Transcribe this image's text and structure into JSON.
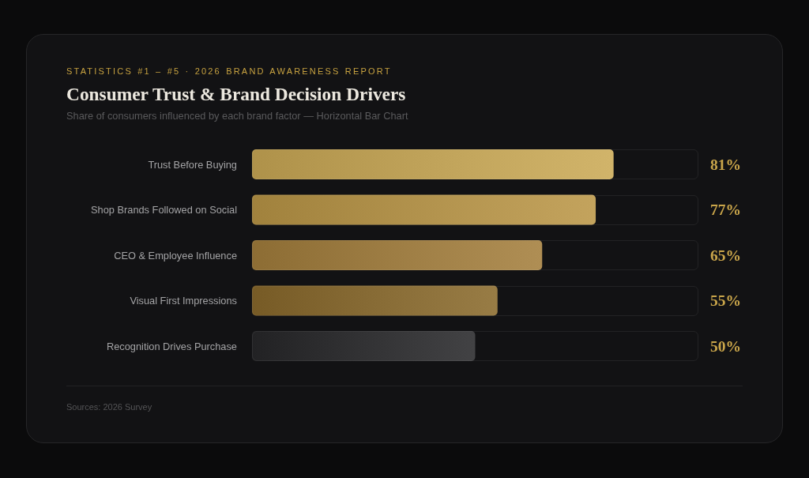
{
  "chart_data": {
    "type": "bar",
    "orientation": "horizontal",
    "title": "Consumer Trust & Brand Decision Drivers",
    "subtitle": "Share of consumers influenced by each brand factor — Horizontal Bar Chart",
    "annotations": [
      "STATISTICS #1 – #5 · 2026 BRAND AWARENESS REPORT",
      "Sources: 2026 Survey"
    ],
    "categories": [
      "Trust Before Buying",
      "Shop Brands Followed on Social",
      "CEO & Employee Influence",
      "Visual First Impressions",
      "Recognition Drives Purchase"
    ],
    "values": [
      81,
      77,
      65,
      55,
      50
    ],
    "value_labels": [
      "81%",
      "77%",
      "65%",
      "55%",
      "50%"
    ],
    "colors": [
      "#cbaa56",
      "#bb9747",
      "#a47f3d",
      "#8a6a2c",
      "#28282a"
    ],
    "xlim": [
      0,
      100
    ],
    "tick_labels": "y"
  }
}
